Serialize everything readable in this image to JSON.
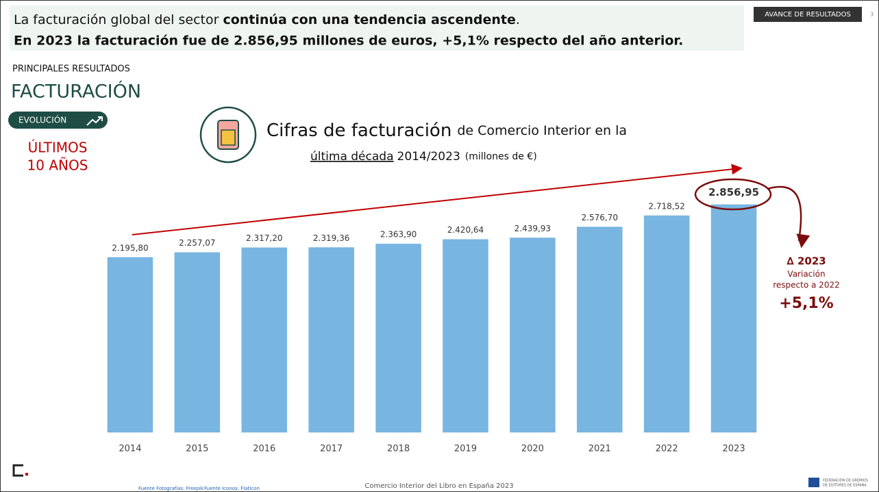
{
  "header": {
    "line1": [
      "La facturación global del sector ",
      "continúa con una tendencia ascendente",
      "."
    ],
    "line2": "En 2023 la facturación fue de 2.856,95 millones de euros, +5,1% respecto del año anterior.",
    "tag": "AVANCE DE RESULTADOS",
    "page": "3"
  },
  "section": "PRINCIPALES RESULTADOS",
  "heading": "FACTURACIÓN",
  "badge": "EVOLUCIÓN",
  "period": [
    "ÚLTIMOS",
    "10 AÑOS"
  ],
  "chart_data": {
    "type": "bar",
    "title": "Cifras de facturación",
    "title_rest": "de Comercio Interior en la",
    "subtitle": [
      "última década",
      "2014/2023",
      "(millones de €)"
    ],
    "categories": [
      "2014",
      "2015",
      "2016",
      "2017",
      "2018",
      "2019",
      "2020",
      "2021",
      "2022",
      "2023"
    ],
    "values": [
      2195.8,
      2257.07,
      2317.2,
      2319.36,
      2363.9,
      2420.64,
      2439.93,
      2576.7,
      2718.52,
      2856.95
    ],
    "value_labels": [
      "2.195,80",
      "2.257,07",
      "2.317,20",
      "2.319,36",
      "2.363,90",
      "2.420,64",
      "2.439,93",
      "2.576,70",
      "2.718,52",
      "2.856,95"
    ],
    "color": "#79b5e1",
    "ylim": [
      0,
      3000
    ],
    "annotations": [
      "∆ 2023",
      "Variación",
      "respecto a 2022",
      "+5,1%"
    ]
  },
  "footer": {
    "sources": [
      "Fuente Fotografías: Freepik",
      "Fuente Iconos: FlatIcon"
    ],
    "center": "Comercio Interior del Libro en España 2023",
    "logo": [
      "FEDERACIÓN DE GREMIOS",
      "DE EDITORES DE ESPAÑA"
    ]
  }
}
